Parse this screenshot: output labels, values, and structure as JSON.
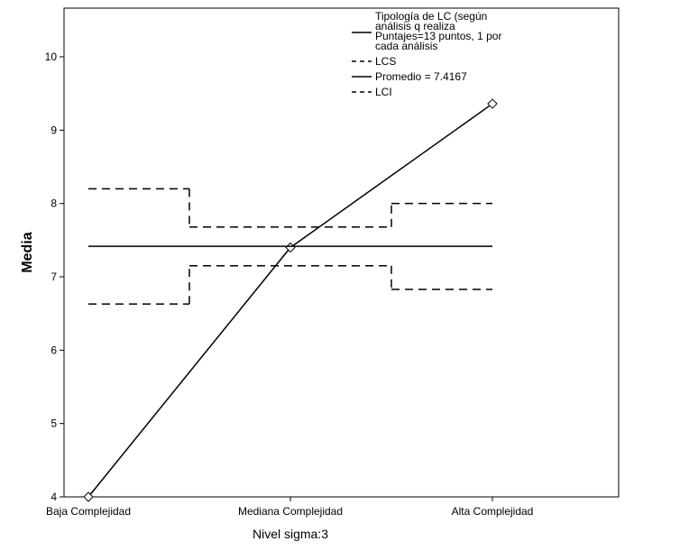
{
  "chart_data": {
    "type": "line",
    "categories": [
      "Baja Complejidad",
      "Mediana Complejidad",
      "Alta Complejidad"
    ],
    "ylabel": "Media",
    "xlabel": "",
    "ylim": [
      4,
      10.7
    ],
    "yticks": [
      4,
      5,
      6,
      7,
      8,
      9,
      10
    ],
    "grid": false,
    "legend_position": "top-right",
    "footnote": "Nivel sigma:3",
    "series": [
      {
        "name": "Tipología de LC (según análisis q realiza Puntajes=13 puntos, 1 por cada análisis",
        "legend_lines": [
          "Tipología de LC (según",
          "análisis q realiza",
          "Puntajes=13 puntos, 1 por",
          "cada análisis"
        ],
        "style": "solid",
        "markers": true,
        "values": [
          4.0,
          7.4,
          9.36
        ]
      },
      {
        "name": "LCS",
        "style": "dashed-step",
        "values": [
          8.2,
          7.68,
          8.0
        ]
      },
      {
        "name": "Promedio = 7.4167",
        "style": "solid-flat",
        "values": [
          7.4167,
          7.4167,
          7.4167
        ]
      },
      {
        "name": "LCI",
        "style": "dashed-step",
        "values": [
          6.63,
          7.15,
          6.83
        ]
      }
    ]
  }
}
